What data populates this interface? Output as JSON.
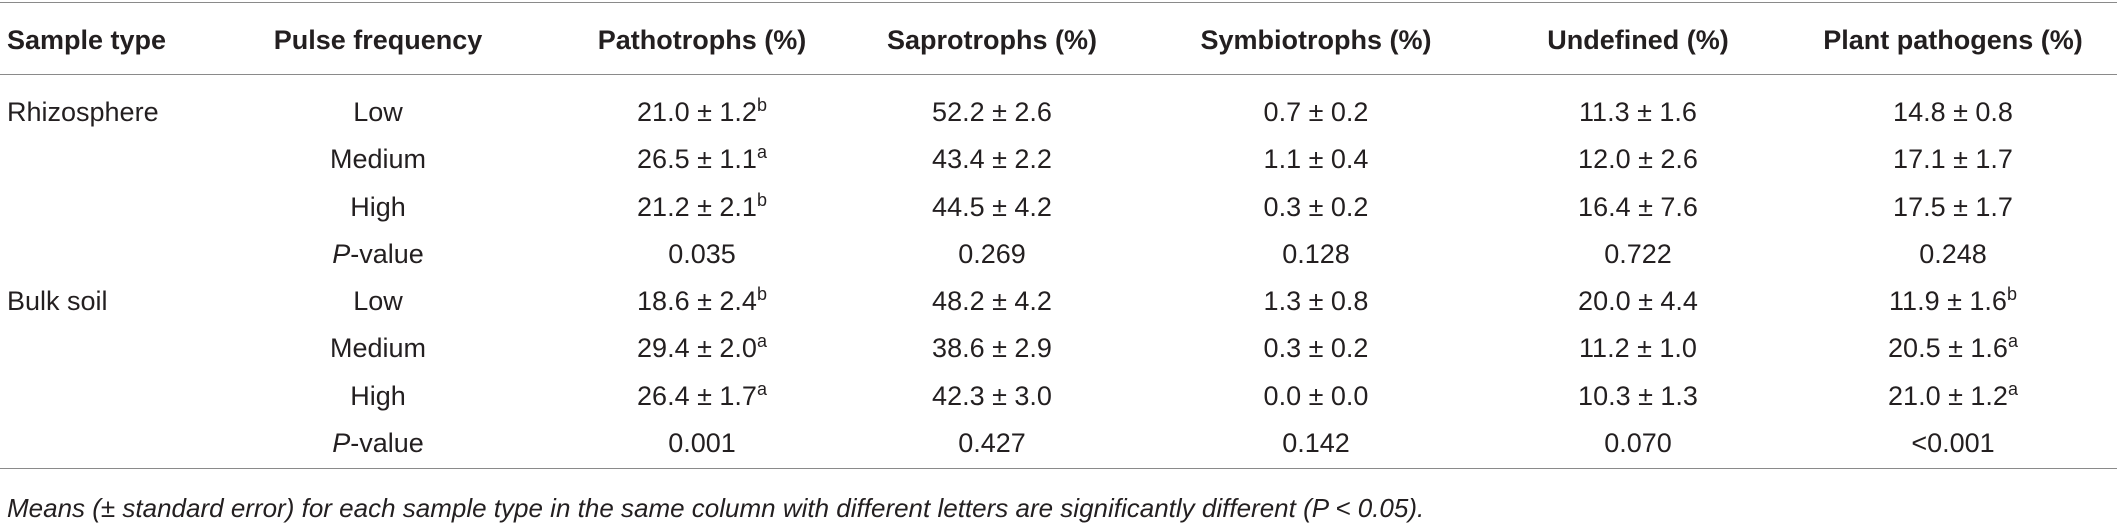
{
  "table": {
    "header": [
      "Sample type",
      "Pulse frequency",
      "Pathotrophs (%)",
      "Saprotrophs (%)",
      "Symbiotrophs (%)",
      "Undefined (%)",
      "Plant pathogens (%)"
    ],
    "rows": [
      [
        "Rhizosphere",
        "Low",
        {
          "text": "21.0 ± 1.2",
          "sup": "b"
        },
        "52.2 ± 2.6",
        "0.7 ± 0.2",
        "11.3 ± 1.6",
        "14.8 ± 0.8"
      ],
      [
        null,
        "Medium",
        {
          "text": "26.5 ± 1.1",
          "sup": "a"
        },
        "43.4 ± 2.2",
        "1.1 ± 0.4",
        "12.0 ± 2.6",
        "17.1 ± 1.7"
      ],
      [
        null,
        "High",
        {
          "text": "21.2 ± 2.1",
          "sup": "b"
        },
        "44.5 ± 4.2",
        "0.3 ± 0.2",
        "16.4 ± 7.6",
        "17.5 ± 1.7"
      ],
      [
        null,
        {
          "italic": "P",
          "text": "-value"
        },
        "0.035",
        "0.269",
        "0.128",
        "0.722",
        "0.248"
      ],
      [
        "Bulk soil",
        "Low",
        {
          "text": "18.6 ± 2.4",
          "sup": "b"
        },
        "48.2 ± 4.2",
        "1.3 ± 0.8",
        "20.0 ± 4.4",
        {
          "text": "11.9 ± 1.6",
          "sup": "b"
        }
      ],
      [
        null,
        "Medium",
        {
          "text": "29.4 ± 2.0",
          "sup": "a"
        },
        "38.6 ± 2.9",
        "0.3 ± 0.2",
        "11.2 ± 1.0",
        {
          "text": "20.5 ± 1.6",
          "sup": "a"
        }
      ],
      [
        null,
        "High",
        {
          "text": "26.4 ± 1.7",
          "sup": "a"
        },
        "42.3 ± 3.0",
        "0.0 ± 0.0",
        "10.3 ± 1.3",
        {
          "text": "21.0 ± 1.2",
          "sup": "a"
        }
      ],
      [
        null,
        {
          "italic": "P",
          "text": "-value"
        },
        "0.001",
        "0.427",
        "0.142",
        "0.070",
        "<0.001"
      ]
    ],
    "footnote": "Means (± standard error) for each sample type in the same column with different letters are significantly different (P < 0.05)."
  }
}
